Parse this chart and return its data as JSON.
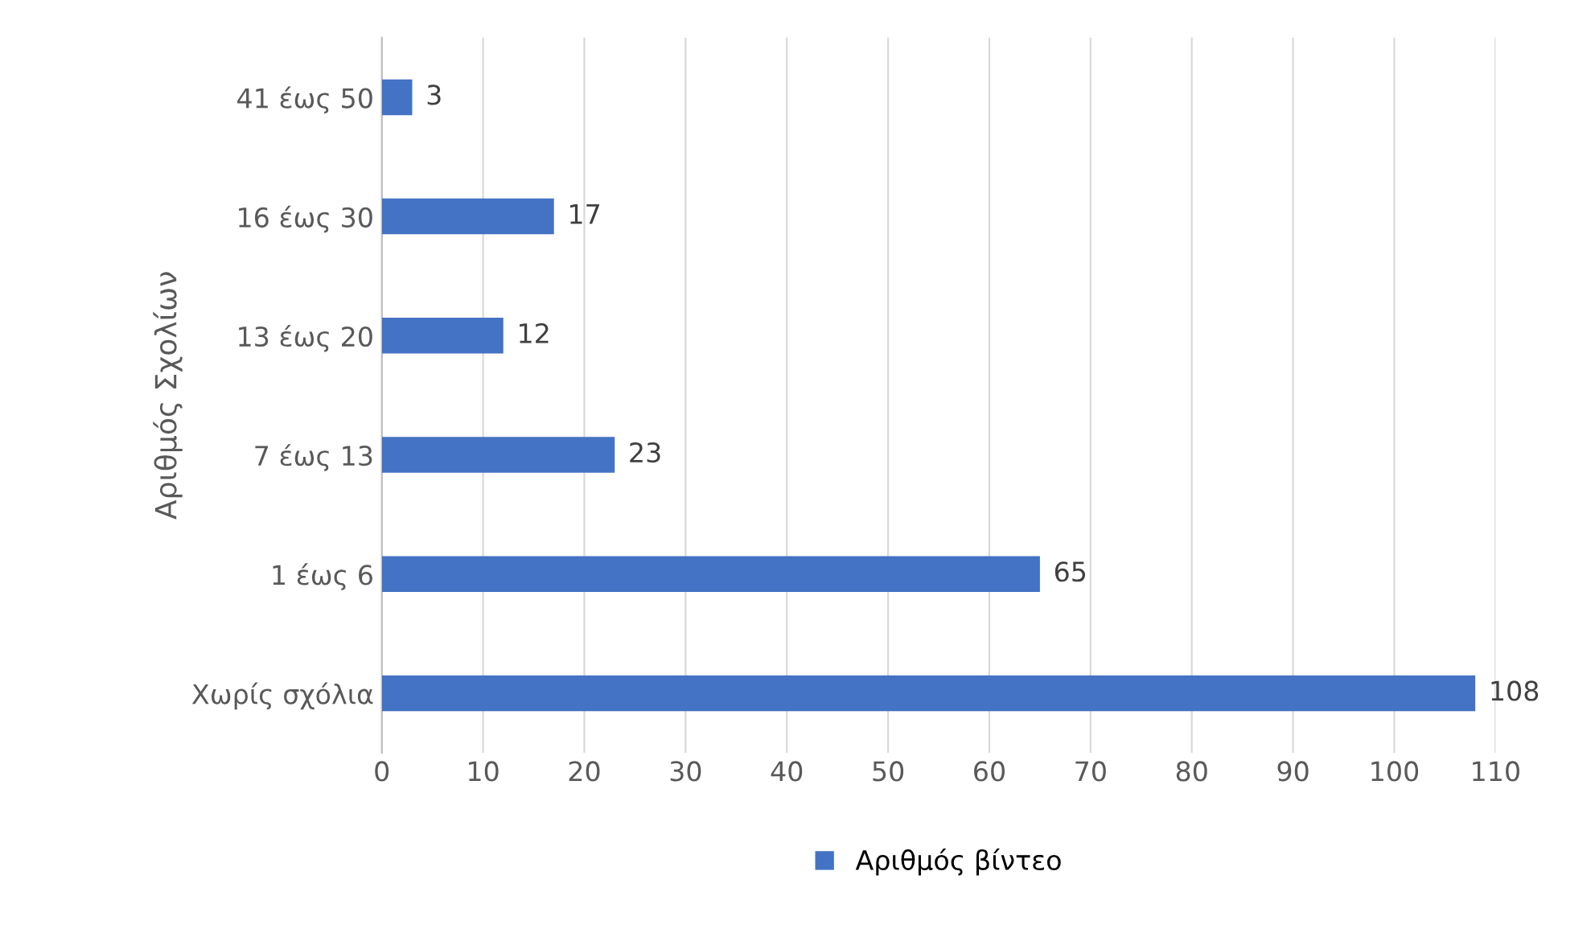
{
  "chart_data": {
    "type": "bar",
    "orientation": "horizontal",
    "ylabel": "Αριθμός Σχολίων",
    "categories": [
      "41 έως 50",
      "16 έως 30",
      "13 έως 20",
      "7 έως 13",
      "1 έως 6",
      "Χωρίς σχόλια"
    ],
    "series": [
      {
        "name": "Αριθμός βίντεο",
        "color": "#4472c4",
        "values": [
          3,
          17,
          12,
          23,
          65,
          108
        ]
      }
    ],
    "xlim": [
      0,
      110
    ],
    "xticks": [
      0,
      10,
      20,
      30,
      40,
      50,
      60,
      70,
      80,
      90,
      100,
      110
    ],
    "grid": "x",
    "legend": "bottom",
    "data_labels": true
  }
}
